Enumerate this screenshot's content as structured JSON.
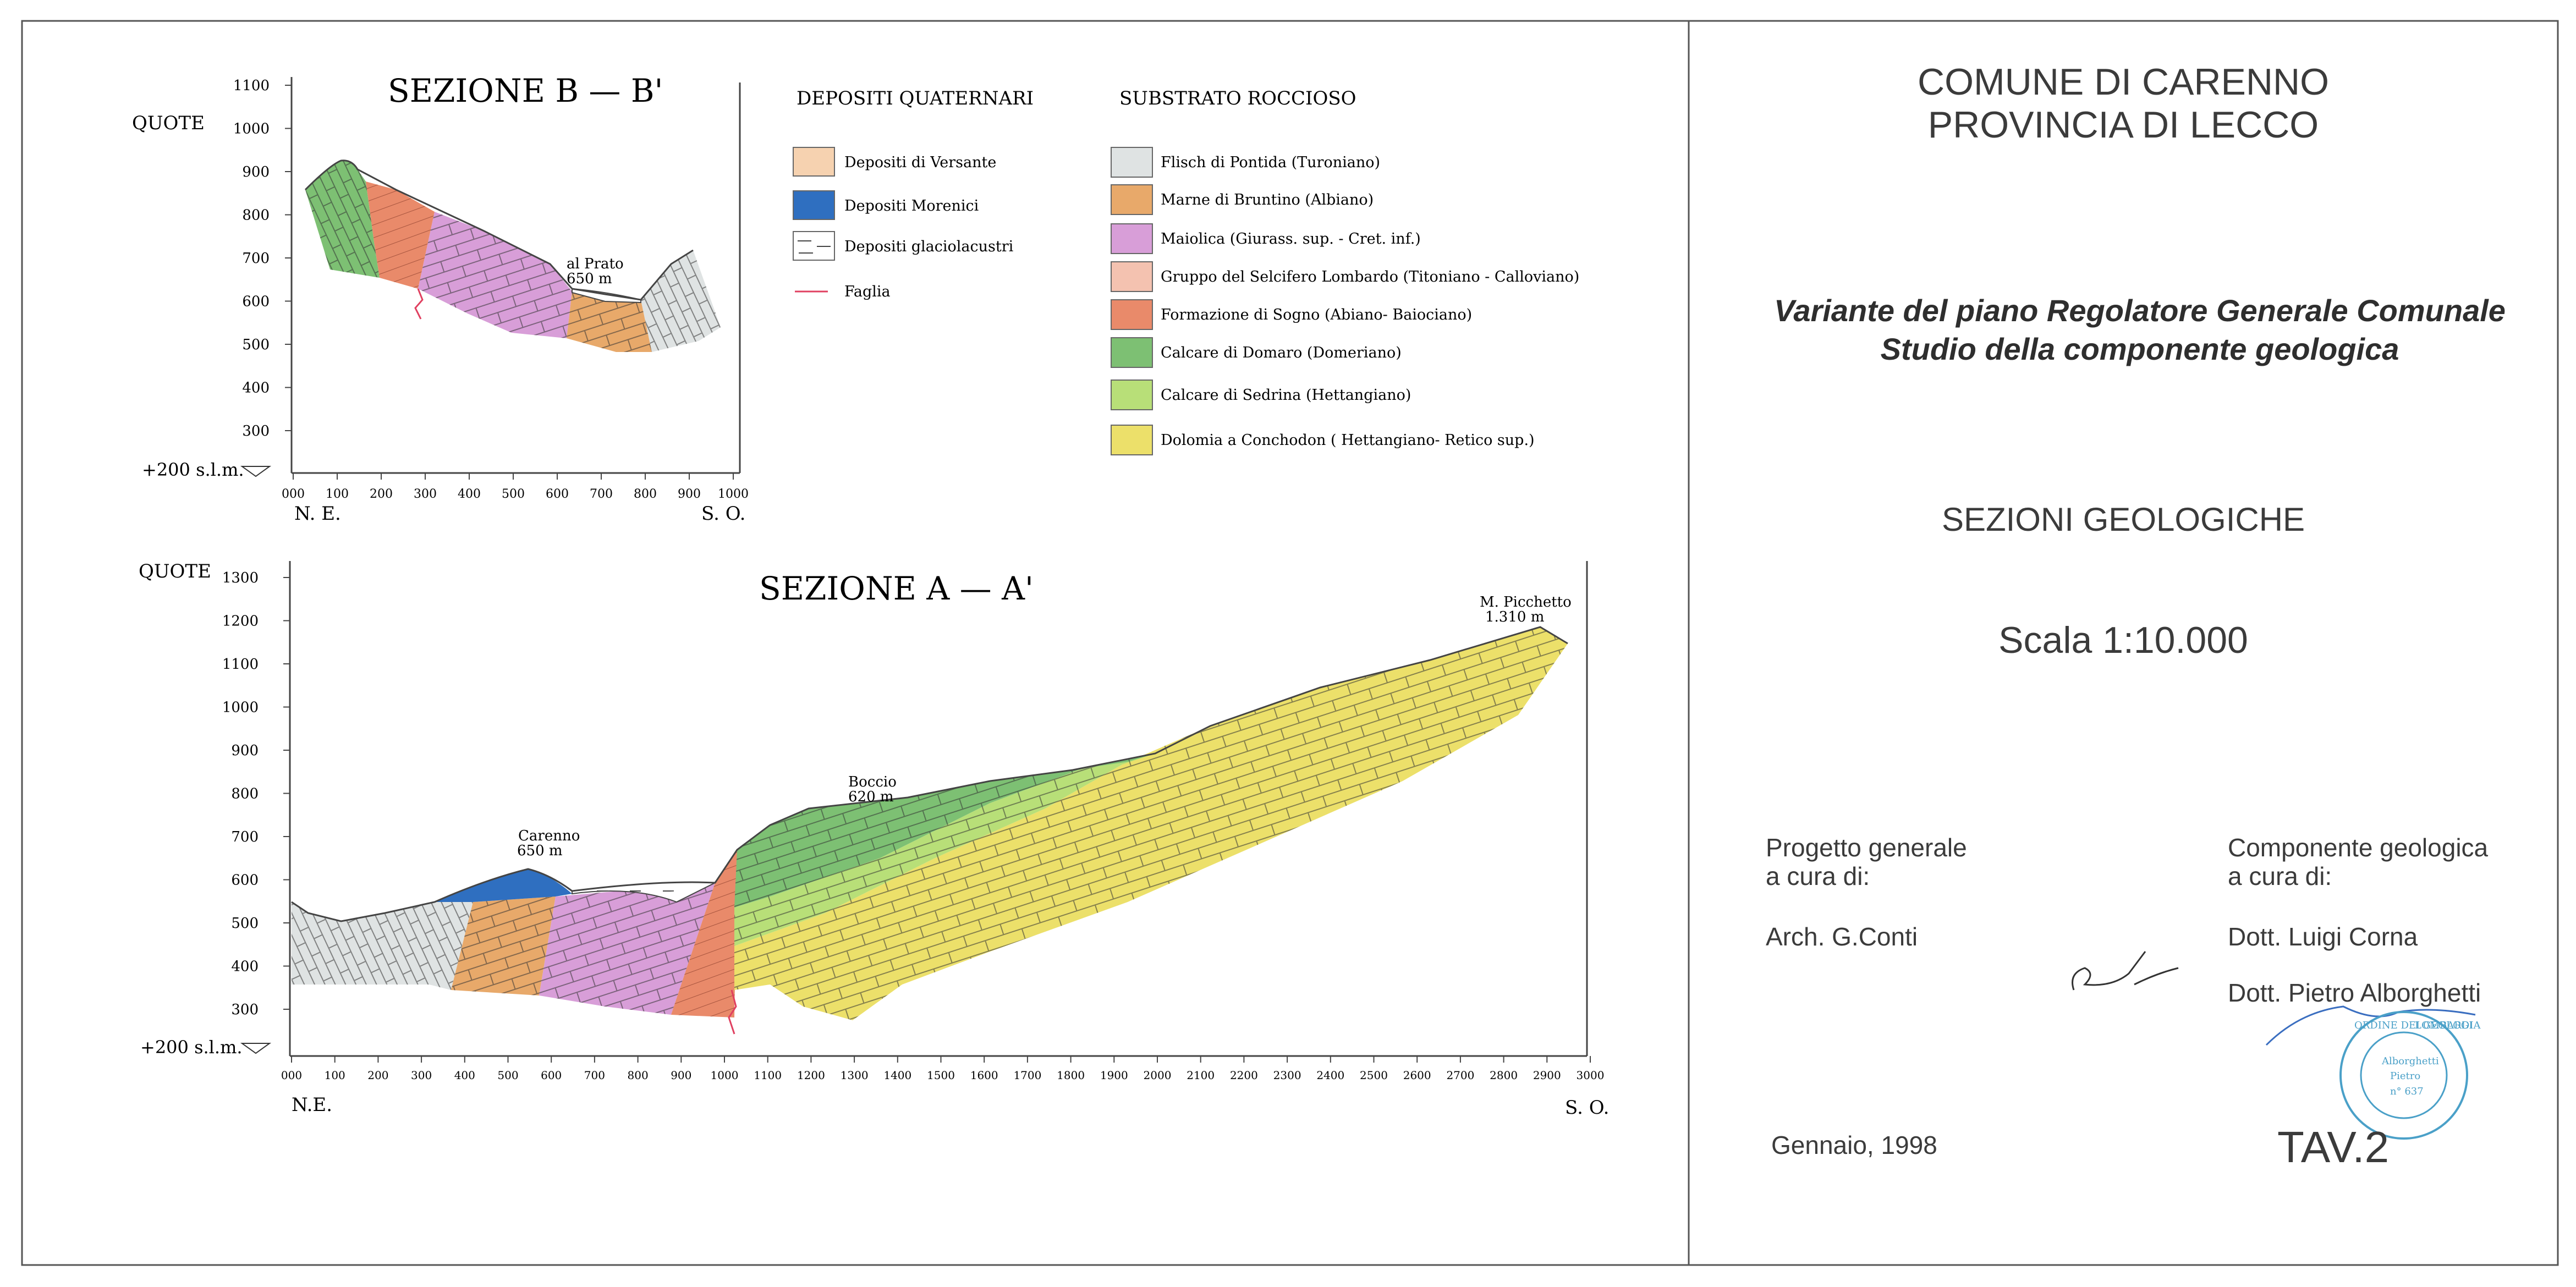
{
  "sheet": {
    "municipality": [
      "COMUNE DI CARENNO",
      "PROVINCIA DI LECCO"
    ],
    "project_title": [
      "Variante del piano Regolatore Generale Comunale",
      "Studio della componente geologica"
    ],
    "sheet_name": "SEZIONI GEOLOGICHE",
    "scale": "Scala 1:10.000",
    "credits_left": {
      "heading": [
        "Progetto generale",
        "a cura di:"
      ],
      "names": [
        "Arch. G.Conti"
      ]
    },
    "credits_right": {
      "heading": [
        "Componente geologica",
        "a cura di:"
      ],
      "names": [
        "Dott. Luigi Corna",
        "Dott. Pietro Alborghetti"
      ]
    },
    "date": "Gennaio, 1998",
    "table_number": "TAV.2",
    "stamp_text": [
      "ORDINE DEI GEOLOGI",
      "LOMBARDIA",
      "Alborghetti",
      "Pietro",
      "n° 637"
    ]
  },
  "legend": {
    "quaternary_title": "DEPOSITI QUATERNARI",
    "bedrock_title": "SUBSTRATO ROCCIOSO",
    "quaternary": [
      {
        "label": "Depositi di Versante",
        "color": "#f6d2b0"
      },
      {
        "label": "Depositi Morenici",
        "color": "#2f6fc0"
      },
      {
        "label": "Depositi glaciolacustri",
        "color": "#ffffff"
      },
      {
        "label": "Faglia",
        "color": "#e04060"
      }
    ],
    "bedrock": [
      {
        "label": "Flisch di Pontida (Turoniano)",
        "color": "#dfe3e3"
      },
      {
        "label": "Marne di Bruntino (Albiano)",
        "color": "#e8a96a"
      },
      {
        "label": "Maiolica (Giurass. sup. - Cret. inf.)",
        "color": "#d89ed8"
      },
      {
        "label": "Gruppo del Selcifero Lombardo (Titoniano - Calloviano)",
        "color": "#f4c2b0"
      },
      {
        "label": "Formazione di Sogno (Abiano- Baiociano)",
        "color": "#e98a6a"
      },
      {
        "label": "Calcare di Domaro (Domeriano)",
        "color": "#7dc073"
      },
      {
        "label": "Calcare di Sedrina (Hettangiano)",
        "color": "#b8df78"
      },
      {
        "label": "Dolomia a Conchodon ( Hettangiano- Retico sup.)",
        "color": "#ece06a"
      }
    ]
  },
  "section_b": {
    "title": "SEZIONE B — B'",
    "y_axis_label": "QUOTE",
    "y_ticks": [
      "1100",
      "1000",
      "900",
      "800",
      "700",
      "600",
      "500",
      "400",
      "300"
    ],
    "x_ticks": [
      "000",
      "100",
      "200",
      "300",
      "400",
      "500",
      "600",
      "700",
      "800",
      "900",
      "1000"
    ],
    "base_label": "+200 s.l.m.",
    "left_direction": "N. E.",
    "right_direction": "S. O.",
    "annotations": [
      {
        "name": "al Prato",
        "elevation": "650 m"
      }
    ]
  },
  "section_a": {
    "title": "SEZIONE A — A'",
    "y_axis_label": "QUOTE",
    "y_ticks": [
      "1300",
      "1200",
      "1100",
      "1000",
      "900",
      "800",
      "700",
      "600",
      "500",
      "400",
      "300"
    ],
    "x_ticks": [
      "000",
      "100",
      "200",
      "300",
      "400",
      "500",
      "600",
      "700",
      "800",
      "900",
      "1000",
      "1100",
      "1200",
      "1300",
      "1400",
      "1500",
      "1600",
      "1700",
      "1800",
      "1900",
      "2000",
      "2100",
      "2200",
      "2300",
      "2400",
      "2500",
      "2600",
      "2700",
      "2800",
      "2900",
      "3000"
    ],
    "base_label": "+200 s.l.m.",
    "left_direction": "N.E.",
    "right_direction": "S. O.",
    "annotations": [
      {
        "name": "Carenno",
        "elevation": "650 m"
      },
      {
        "name": "Boccio",
        "elevation": "620 m"
      },
      {
        "name": "M. Picchetto",
        "elevation": "1.310 m"
      }
    ]
  }
}
